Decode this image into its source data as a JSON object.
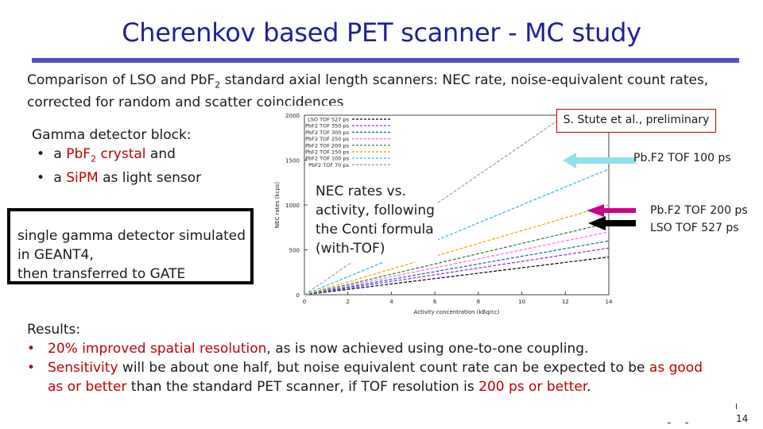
{
  "slide": {
    "title": "Cherenkov  based PET scanner - MC study",
    "subtitle_line1_a": "Comparison of LSO and Pb",
    "subtitle_line1_b": "F",
    "subtitle_line1_sub": "2",
    "subtitle_line1_c": " standard axial length scanners: NEC rate, noise-equivalent count rates,",
    "subtitle_line2": "corrected for random and scatter coincidences",
    "page_number": "14",
    "accent_color": "#1f1f9a",
    "highlight_color": "#c00000"
  },
  "gamma_block": {
    "heading": "Gamma detector block:",
    "bullet1_a": "a ",
    "bullet1_red": "PbF",
    "bullet1_sub": "2",
    "bullet1_red2": " crystal",
    "bullet1_b": " and",
    "bullet2_a": "a ",
    "bullet2_red": "SiPM",
    "bullet2_b": " as light sensor"
  },
  "sim_box": {
    "line1": "single gamma detector simulated",
    "line2": "in GEANT4,",
    "line3": "then transferred to GATE"
  },
  "nec_note": {
    "line1": "NEC rates vs.",
    "line2": "activity, following",
    "line3": "the Conti formula",
    "line4": "(with-TOF)"
  },
  "reference": "S. Stute et al., preliminary",
  "arrows": {
    "arrow1_label": "Pb.F2 TOF 100 ps",
    "arrow2_label1": "Pb.F2 TOF 200 ps",
    "arrow2_label2": "LSO TOF 527 ps",
    "arrow1_color": "#8fe0f0",
    "arrow2_color": "#cc0088",
    "arrow3_color": "#000000"
  },
  "results": {
    "heading": "Results:",
    "b1_red": "20% improved spatial resolution",
    "b1_rest": ", as is now achieved using one-to-one coupling.",
    "b2_red": "Sensitivity",
    "b2_mid": " will be about one half, but noise equivalent count rate can be expected to be ",
    "b2_red2": "as good",
    "b2_line2_a": "as or better",
    "b2_line2_b": " than the standard PET scanner, if TOF resolution is ",
    "b2_line2_red": "200 ps or  better",
    "b2_line2_c": "."
  },
  "chart_data": {
    "type": "line",
    "title": "",
    "xlabel": "Activity concentration (kBq/cc)",
    "ylabel": "NEC rates (kcps)",
    "xlim": [
      0,
      14
    ],
    "ylim": [
      0,
      2000
    ],
    "xticks": [
      "0",
      "2",
      "4",
      "6",
      "8",
      "10",
      "12",
      "14"
    ],
    "yticks": [
      "0",
      "500",
      "1000",
      "1500",
      "2000"
    ],
    "legend_position": "top-left",
    "series": [
      {
        "name": "LSO TOF 527 ps",
        "color": "#000000",
        "x": [
          0,
          14
        ],
        "y": [
          0,
          420
        ]
      },
      {
        "name": "PbF2 TOF 350 ps",
        "color": "#8b2be2",
        "x": [
          0,
          14
        ],
        "y": [
          0,
          520
        ]
      },
      {
        "name": "PbF2 TOF 300 ps",
        "color": "#1565c0",
        "x": [
          0,
          14
        ],
        "y": [
          0,
          600
        ]
      },
      {
        "name": "PbF2 TOF 250 ps",
        "color": "#ff66ff",
        "x": [
          0,
          14
        ],
        "y": [
          0,
          700
        ]
      },
      {
        "name": "PbF2 TOF 200 ps",
        "color": "#2e7d32",
        "x": [
          0,
          14
        ],
        "y": [
          0,
          800
        ]
      },
      {
        "name": "PbF2 TOF 150 ps",
        "color": "#f2a500",
        "x": [
          0,
          14
        ],
        "y": [
          0,
          1000
        ]
      },
      {
        "name": "PbF2 TOF 100 ps",
        "color": "#29b6f6",
        "x": [
          0,
          14
        ],
        "y": [
          0,
          1400
        ]
      },
      {
        "name": "PbF2 TOF 70 ps",
        "color": "#9e9e9e",
        "x": [
          0,
          12
        ],
        "y": [
          0,
          2000
        ]
      }
    ]
  }
}
